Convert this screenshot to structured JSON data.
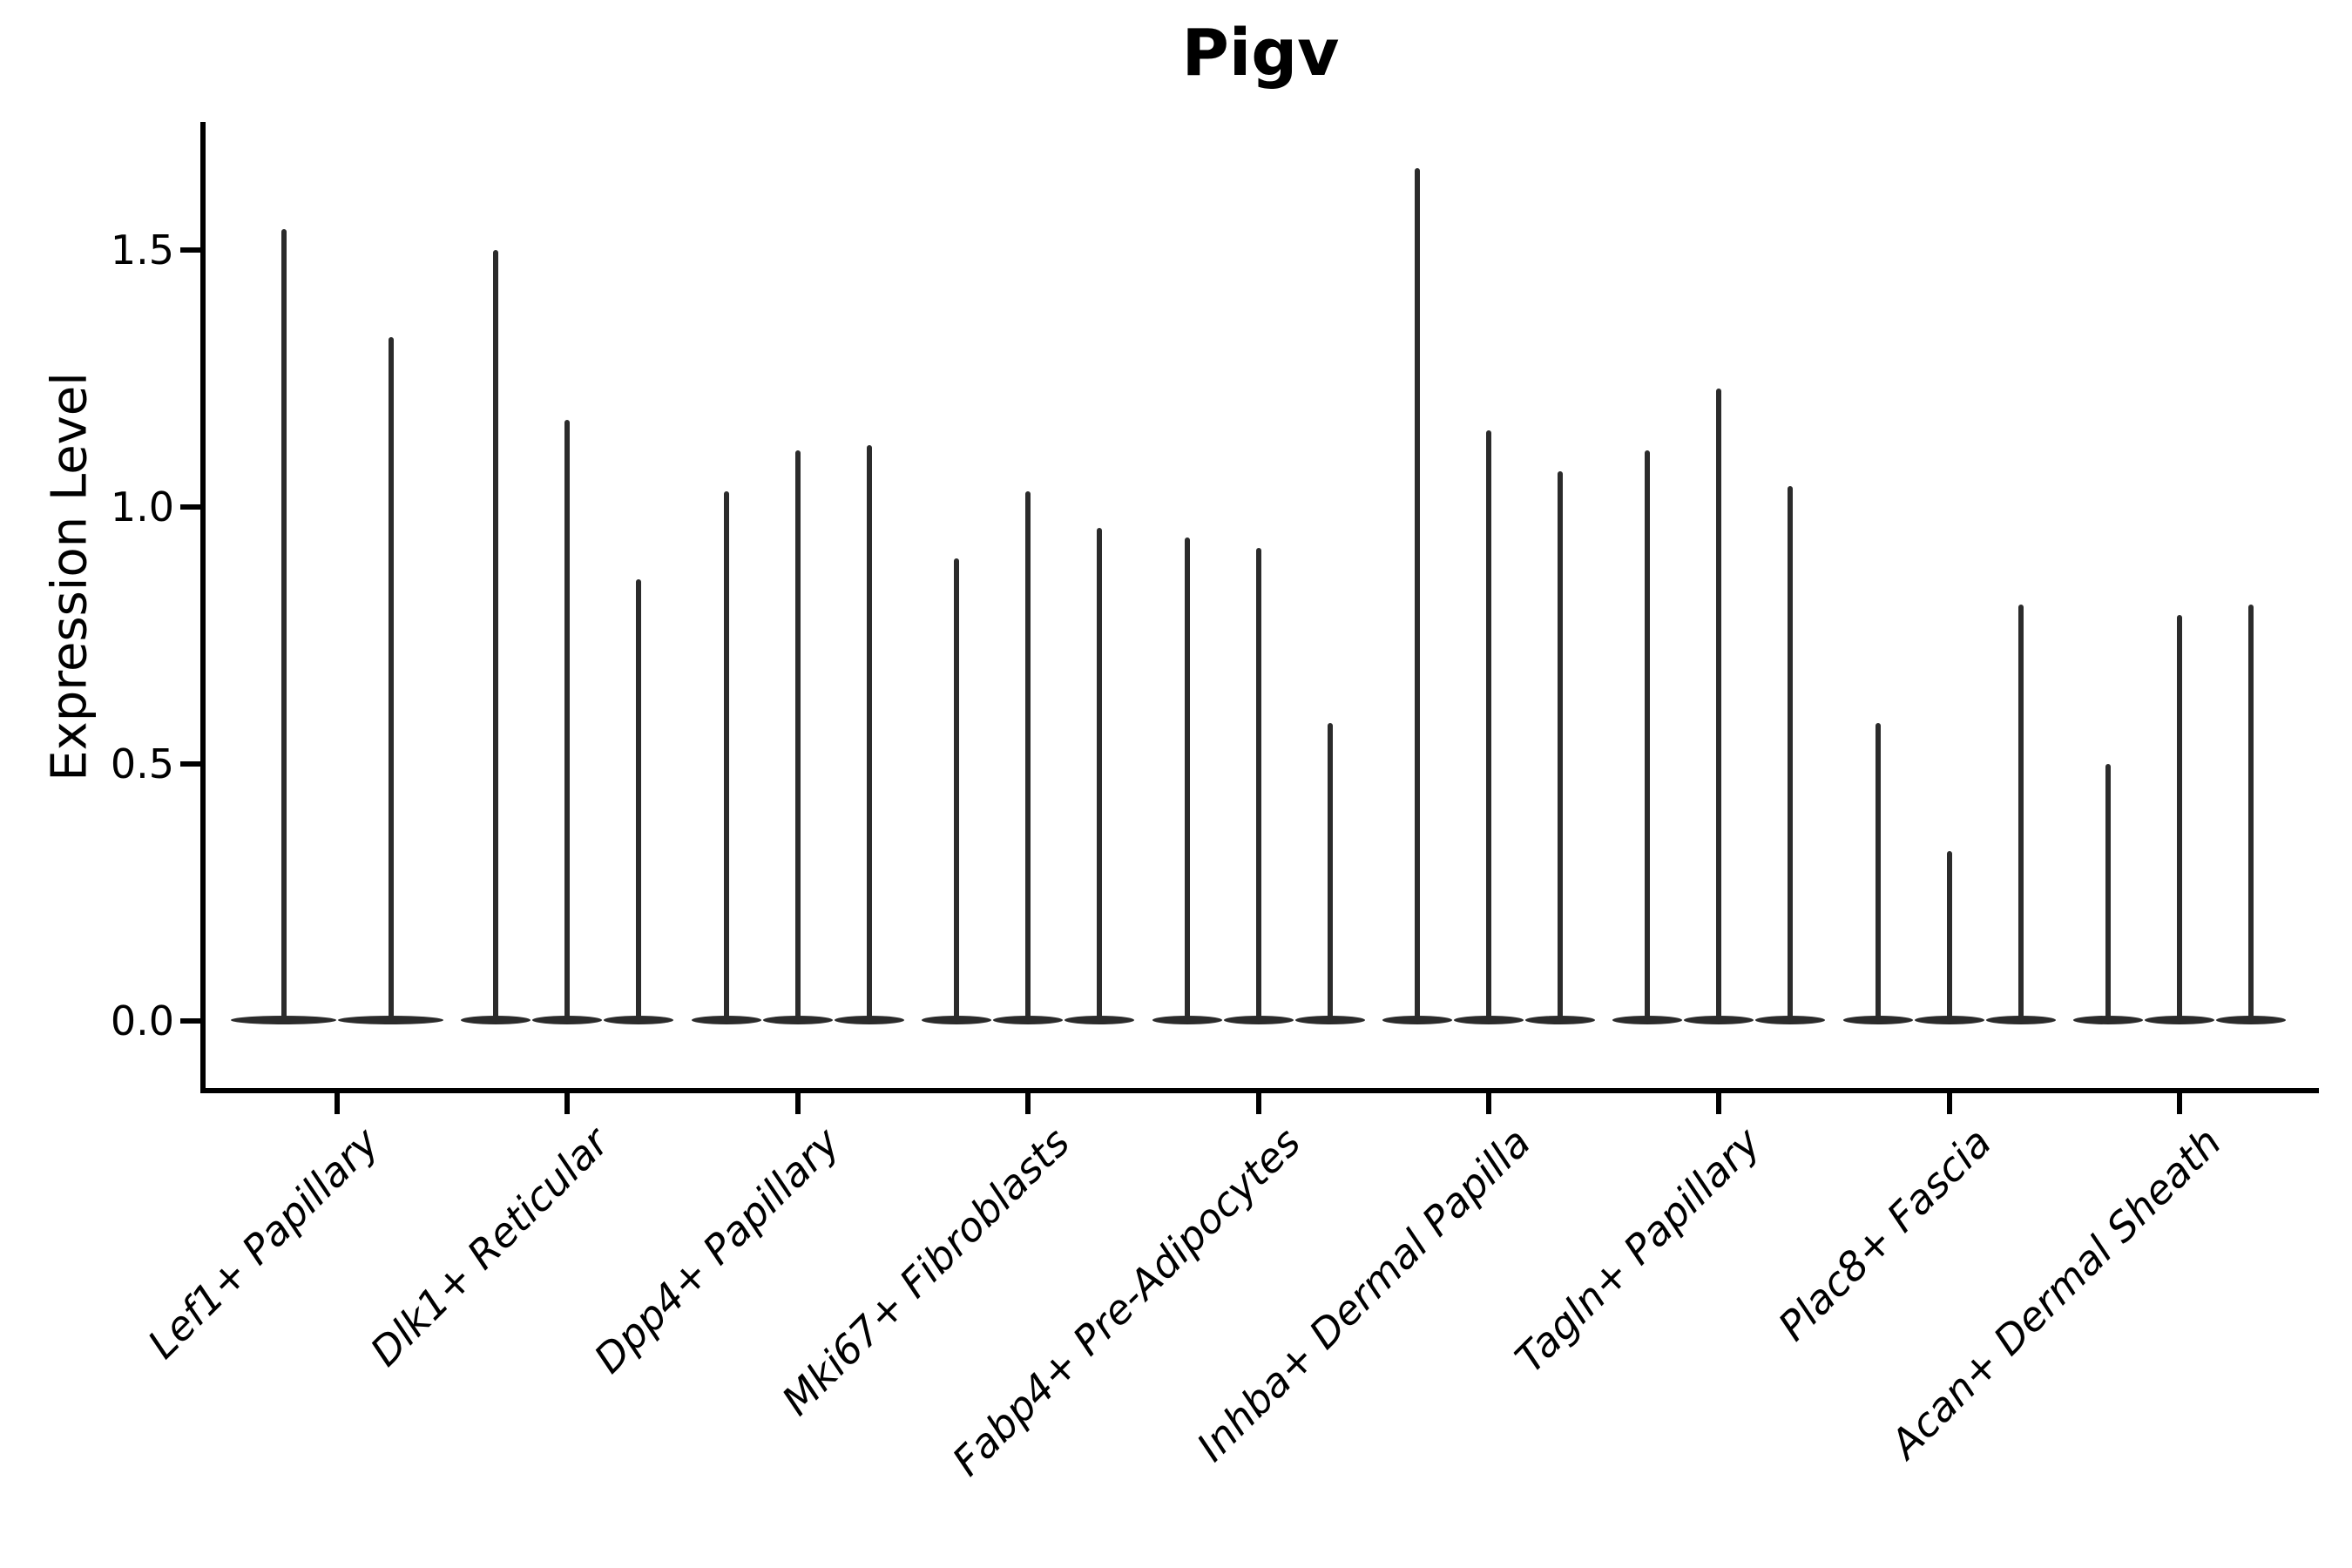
{
  "title": "Pigv",
  "y_axis": {
    "label": "Expression Level",
    "tick_labels": [
      "0.0",
      "0.5",
      "1.0",
      "1.5"
    ],
    "tick_values": [
      0.0,
      0.5,
      1.0,
      1.5
    ]
  },
  "colors": {
    "violin": "#2b2b2b",
    "axis": "#000000",
    "background": "#ffffff",
    "text": "#000000"
  },
  "chart_data": {
    "type": "violin",
    "title": "Pigv",
    "xlabel": "",
    "ylabel": "Expression Level",
    "ylim": [
      -0.14,
      1.75
    ],
    "yticks": [
      0.0,
      0.5,
      1.0,
      1.5
    ],
    "grid": false,
    "legend": "none",
    "description": "Thin spike-shaped violins; each violin has dense mass at 0 (flat base blob) and a narrow spike up to its max expression value.",
    "categories": [
      "Lef1+ Papillary",
      "Dlk1+ Reticular",
      "Dpp4+ Papillary",
      "Mki67+ Fibroblasts",
      "Fabp4+ Pre-Adipocytes",
      "Inhba+ Dermal Papilla",
      "Tagln+ Papillary",
      "Plac8+ Fascia",
      "Acan+ Dermal Sheath"
    ],
    "groups": [
      {
        "label": "Lef1+ Papillary",
        "violin_max_values": [
          1.54,
          1.33
        ]
      },
      {
        "label": "Dlk1+ Reticular",
        "violin_max_values": [
          1.5,
          1.17,
          0.86
        ]
      },
      {
        "label": "Dpp4+ Papillary",
        "violin_max_values": [
          1.03,
          1.11,
          1.12
        ]
      },
      {
        "label": "Mki67+ Fibroblasts",
        "violin_max_values": [
          0.9,
          1.03,
          0.96
        ]
      },
      {
        "label": "Fabp4+ Pre-Adipocytes",
        "violin_max_values": [
          0.94,
          0.92,
          0.58
        ]
      },
      {
        "label": "Inhba+ Dermal Papilla",
        "violin_max_values": [
          1.66,
          1.15,
          1.07
        ]
      },
      {
        "label": "Tagln+ Papillary",
        "violin_max_values": [
          1.11,
          1.23,
          1.04
        ]
      },
      {
        "label": "Plac8+ Fascia",
        "violin_max_values": [
          0.58,
          0.33,
          0.81
        ]
      },
      {
        "label": "Acan+ Dermal Sheath",
        "violin_max_values": [
          0.5,
          0.79,
          0.81
        ]
      }
    ]
  }
}
